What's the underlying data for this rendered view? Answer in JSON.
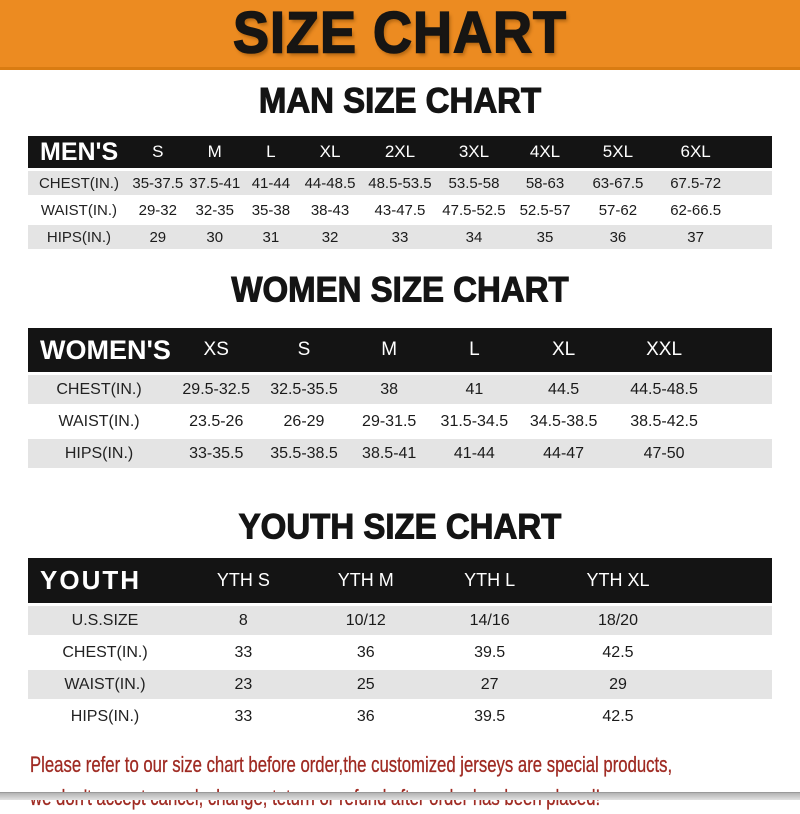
{
  "banner": {
    "title": "SIZE CHART",
    "bg_color": "#EC8B21",
    "text_color": "#171513"
  },
  "sections": [
    {
      "id": "men",
      "heading": "MAN SIZE CHART",
      "table_label": "MEN'S",
      "columns": [
        "S",
        "M",
        "L",
        "XL",
        "2XL",
        "3XL",
        "4XL",
        "5XL",
        "6XL"
      ],
      "rows": [
        {
          "label": "CHEST(IN.)",
          "values": [
            "35-37.5",
            "37.5-41",
            "41-44",
            "44-48.5",
            "48.5-53.5",
            "53.5-58",
            "58-63",
            "63-67.5",
            "67.5-72"
          ]
        },
        {
          "label": "WAIST(IN.)",
          "values": [
            "29-32",
            "32-35",
            "35-38",
            "38-43",
            "43-47.5",
            "47.5-52.5",
            "52.5-57",
            "57-62",
            "62-66.5"
          ]
        },
        {
          "label": "HIPS(IN.)",
          "values": [
            "29",
            "30",
            "31",
            "32",
            "33",
            "34",
            "35",
            "36",
            "37"
          ]
        }
      ]
    },
    {
      "id": "women",
      "heading": "WOMEN SIZE CHART",
      "table_label": "WOMEN'S",
      "columns": [
        "XS",
        "S",
        "M",
        "L",
        "XL",
        "XXL"
      ],
      "rows": [
        {
          "label": "CHEST(IN.)",
          "values": [
            "29.5-32.5",
            "32.5-35.5",
            "38",
            "41",
            "44.5",
            "44.5-48.5"
          ]
        },
        {
          "label": "WAIST(IN.)",
          "values": [
            "23.5-26",
            "26-29",
            "29-31.5",
            "31.5-34.5",
            "34.5-38.5",
            "38.5-42.5"
          ]
        },
        {
          "label": "HIPS(IN.)",
          "values": [
            "33-35.5",
            "35.5-38.5",
            "38.5-41",
            "41-44",
            "44-47",
            "47-50"
          ]
        }
      ]
    },
    {
      "id": "youth",
      "heading": "YOUTH SIZE CHART",
      "table_label": "YOUTH",
      "columns": [
        "YTH S",
        "YTH M",
        "YTH L",
        "YTH XL"
      ],
      "rows": [
        {
          "label": "U.S.SIZE",
          "values": [
            "8",
            "10/12",
            "14/16",
            "18/20"
          ]
        },
        {
          "label": "CHEST(IN.)",
          "values": [
            "33",
            "36",
            "39.5",
            "42.5"
          ]
        },
        {
          "label": "WAIST(IN.)",
          "values": [
            "23",
            "25",
            "27",
            "29"
          ]
        },
        {
          "label": "HIPS(IN.)",
          "values": [
            "33",
            "36",
            "39.5",
            "42.5"
          ]
        }
      ]
    }
  ],
  "footer": {
    "lines": [
      "Please refer to our size chart before order,the customized jerseys are special products,",
      "we don't accept cancel, change, teturn or refund after order has been placed!"
    ],
    "text_color": "#9F2A22"
  },
  "row_stripe_color": "#E4E4E4",
  "header_bar_color": "#141414"
}
